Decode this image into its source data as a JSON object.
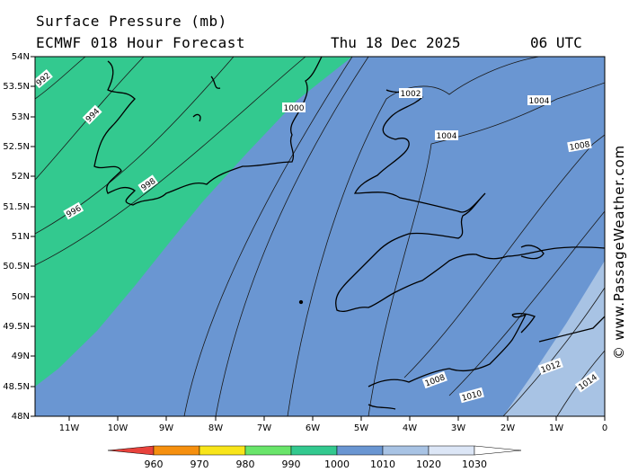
{
  "header": {
    "title": "Surface Pressure (mb)",
    "model": "ECMWF 018 Hour Forecast",
    "date": "Thu 18 Dec 2025",
    "time": "06 UTC"
  },
  "credit": "© www.PassageWeather.com",
  "map": {
    "lat_labels": [
      "54N",
      "53.5N",
      "53N",
      "52.5N",
      "52N",
      "51.5N",
      "51N",
      "50.5N",
      "50N",
      "49.5N",
      "49N",
      "48.5N",
      "48N"
    ],
    "lon_labels": [
      "11W",
      "10W",
      "9W",
      "8W",
      "7W",
      "6W",
      "5W",
      "4W",
      "3W",
      "2W",
      "1W",
      "0"
    ],
    "isobar_labels": [
      "992",
      "994",
      "996",
      "998",
      "1000",
      "1002",
      "1004",
      "1004",
      "1008",
      "1008",
      "1010",
      "1012",
      "1014"
    ],
    "fill_colors": {
      "990_1000": "#33c98f",
      "1000_1010": "#6a96d2",
      "1010_1020": "#a8c3e4"
    }
  },
  "colorbar": {
    "labels": [
      "960",
      "970",
      "980",
      "990",
      "1000",
      "1010",
      "1020",
      "1030"
    ],
    "colors": [
      "#e8423c",
      "#f6900f",
      "#f8e51a",
      "#69e56a",
      "#33c98f",
      "#6a96d2",
      "#a8c3e4",
      "#dce6f6"
    ]
  }
}
